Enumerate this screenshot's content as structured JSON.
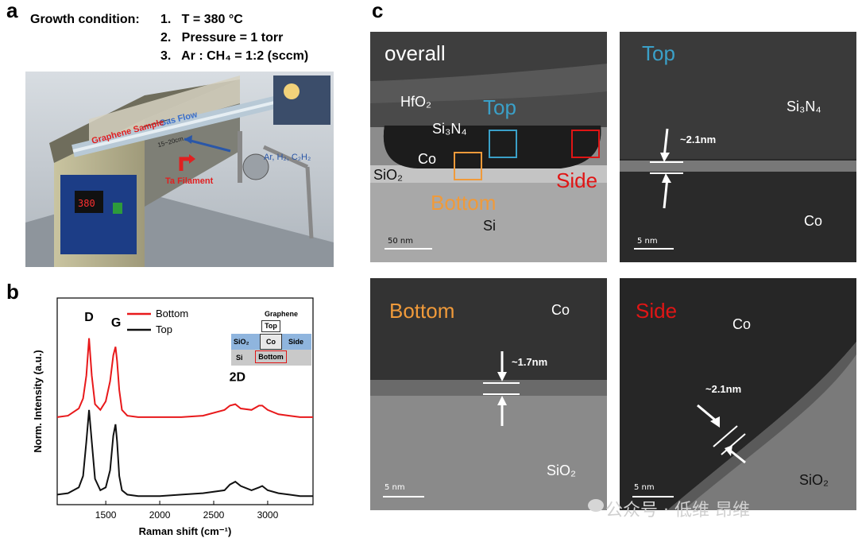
{
  "panels": {
    "a": "a",
    "b": "b",
    "c": "c"
  },
  "growth": {
    "title": "Growth condition:",
    "items": [
      "1.   T = 380 °C",
      "2.   Pressure = 1 torr",
      "3.   Ar : CH₄ = 1:2 (sccm)"
    ]
  },
  "furnace": {
    "gas_flow": "Gas Flow",
    "graphene_sample": "Graphene Sample",
    "distance": "15~20cm",
    "gases": "Ar, H₂, C₂H₂",
    "filament": "Ta Filament",
    "display": "380"
  },
  "chart_data": {
    "type": "line",
    "xlabel": "Raman shift (cm⁻¹)",
    "ylabel": "Norm. Intensity (a.u.)",
    "xlim": [
      1050,
      3420
    ],
    "xticks": [
      1500,
      2000,
      2500,
      3000
    ],
    "peak_labels": [
      "D",
      "G",
      "2D"
    ],
    "x": [
      1050,
      1150,
      1250,
      1290,
      1320,
      1345,
      1370,
      1400,
      1450,
      1500,
      1540,
      1570,
      1590,
      1605,
      1625,
      1650,
      1700,
      1800,
      2000,
      2200,
      2400,
      2600,
      2650,
      2700,
      2750,
      2850,
      2920,
      2950,
      3000,
      3100,
      3200,
      3300,
      3420
    ],
    "series": [
      {
        "name": "Bottom",
        "color": "#e8191b",
        "values": [
          0.305,
          0.31,
          0.335,
          0.37,
          0.45,
          0.58,
          0.45,
          0.35,
          0.33,
          0.36,
          0.43,
          0.52,
          0.55,
          0.5,
          0.4,
          0.33,
          0.31,
          0.305,
          0.305,
          0.305,
          0.31,
          0.33,
          0.345,
          0.35,
          0.335,
          0.33,
          0.345,
          0.345,
          0.33,
          0.315,
          0.31,
          0.305,
          0.305
        ]
      },
      {
        "name": "Top",
        "color": "#111111",
        "values": [
          0.035,
          0.04,
          0.06,
          0.1,
          0.22,
          0.33,
          0.22,
          0.09,
          0.05,
          0.06,
          0.12,
          0.24,
          0.28,
          0.22,
          0.1,
          0.05,
          0.035,
          0.03,
          0.03,
          0.035,
          0.04,
          0.05,
          0.07,
          0.08,
          0.065,
          0.05,
          0.06,
          0.065,
          0.05,
          0.04,
          0.035,
          0.03,
          0.03
        ]
      }
    ],
    "ylim": [
      0,
      0.72
    ]
  },
  "inset": {
    "graphene": "Graphene",
    "top": "Top",
    "sio2": "SiO₂",
    "co": "Co",
    "side": "Side",
    "si": "Si",
    "bottom": "Bottom"
  },
  "tem": {
    "overall": {
      "title": "overall",
      "hfo2": "HfO₂",
      "si3n4": "Si₃N₄",
      "co": "Co",
      "sio2": "SiO₂",
      "si": "Si",
      "top": "Top",
      "bottom": "Bottom",
      "side": "Side",
      "scale": "50 nm"
    },
    "top": {
      "title": "Top",
      "upper": "Si₃N₄",
      "lower": "Co",
      "thickness": "~2.1nm",
      "scale": "5 nm"
    },
    "bottom": {
      "title": "Bottom",
      "upper": "Co",
      "lower": "SiO₂",
      "thickness": "~1.7nm",
      "scale": "5 nm"
    },
    "side": {
      "title": "Side",
      "upper": "Co",
      "lower": "SiO₂",
      "thickness": "~2.1nm",
      "scale": "5 nm"
    }
  },
  "watermark": "公众号 · 低维 昂维",
  "colors": {
    "top": "#3aa0c8",
    "bottom": "#f09a3a",
    "side": "#e01515"
  }
}
